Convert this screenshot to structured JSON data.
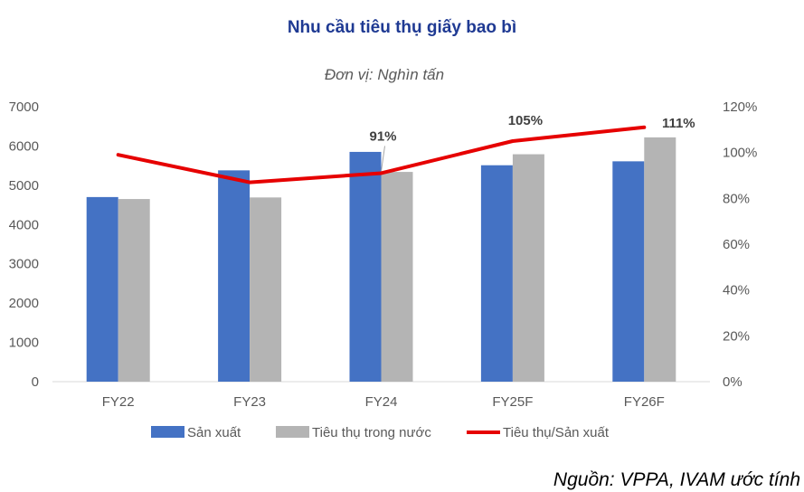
{
  "chart_data": {
    "type": "bar",
    "title": "Nhu cầu tiêu thụ giấy bao bì",
    "subtitle": "Đơn vị: Nghìn tấn",
    "categories": [
      "FY22",
      "FY23",
      "FY24",
      "FY25F",
      "FY26F"
    ],
    "series": [
      {
        "name": "Sản xuất",
        "type": "bar",
        "axis": "left",
        "color": "#4472c4",
        "values": [
          4700,
          5380,
          5850,
          5510,
          5610
        ]
      },
      {
        "name": "Tiêu thụ trong nước",
        "type": "bar",
        "axis": "left",
        "color": "#b4b4b4",
        "values": [
          4650,
          4690,
          5340,
          5790,
          6220
        ]
      },
      {
        "name": "Tiêu thụ/Sản xuất",
        "type": "line",
        "axis": "right",
        "color": "#e60000",
        "values": [
          99,
          87,
          91,
          105,
          111
        ]
      }
    ],
    "data_labels": [
      {
        "series": "Tiêu thụ/Sản xuất",
        "category": "FY24",
        "text": "91%"
      },
      {
        "series": "Tiêu thụ/Sản xuất",
        "category": "FY25F",
        "text": "105%"
      },
      {
        "series": "Tiêu thụ/Sản xuất",
        "category": "FY26F",
        "text": "111%"
      }
    ],
    "ylim": [
      0,
      7000
    ],
    "yticks": [
      "7000",
      "6000",
      "5000",
      "4000",
      "3000",
      "2000",
      "1000",
      "0"
    ],
    "y2lim": [
      0,
      120
    ],
    "y2ticks": [
      "120%",
      "100%",
      "80%",
      "60%",
      "40%",
      "20%",
      "0%"
    ],
    "grid": false,
    "legend_position": "bottom"
  },
  "source": "Nguồn: VPPA, IVAM ước tính"
}
